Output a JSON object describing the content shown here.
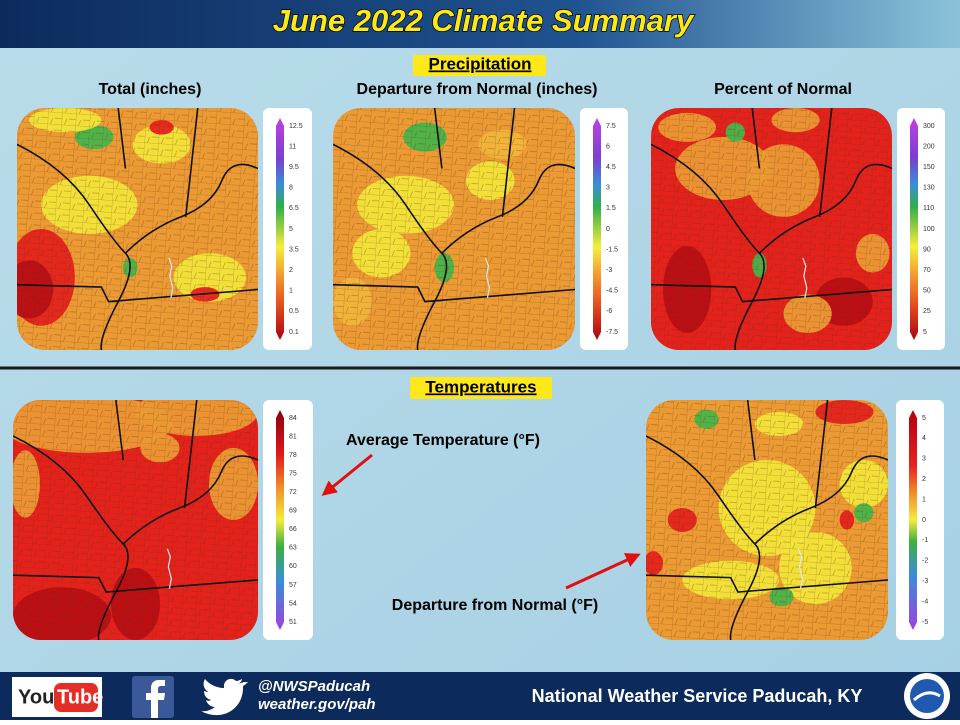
{
  "header": {
    "title": "June 2022 Climate Summary"
  },
  "precipitation": {
    "heading": "Precipitation",
    "panels": [
      {
        "title": "Total (inches)",
        "legend": [
          "12.5",
          "11",
          "9.5",
          "8",
          "6.5",
          "5",
          "3.5",
          "2",
          "1",
          "0.5",
          "0.1"
        ]
      },
      {
        "title": "Departure  from Normal (inches)",
        "legend": [
          "7.5",
          "6",
          "4.5",
          "3",
          "1.5",
          "0",
          "-1.5",
          "-3",
          "-4.5",
          "-6",
          "-7.5"
        ]
      },
      {
        "title": "Percent of Normal",
        "legend": [
          "300",
          "200",
          "150",
          "130",
          "110",
          "100",
          "90",
          "70",
          "50",
          "25",
          "5"
        ]
      }
    ]
  },
  "temperatures": {
    "heading": "Temperatures",
    "panels": [
      {
        "title": "Average Temperature (°F)",
        "legend": [
          "84",
          "81",
          "78",
          "75",
          "72",
          "69",
          "66",
          "63",
          "60",
          "57",
          "54",
          "51"
        ]
      },
      {
        "title": "Departure from Normal (°F)",
        "legend": [
          "5",
          "4",
          "3",
          "2",
          "1",
          "0",
          "-1",
          "-2",
          "-3",
          "-4",
          "-5"
        ]
      }
    ]
  },
  "footer": {
    "youtube": [
      "You",
      "Tube"
    ],
    "handle": "@NWSPaducah",
    "website": "weather.gov/pah",
    "office": "National Weather Service Paducah, KY"
  }
}
